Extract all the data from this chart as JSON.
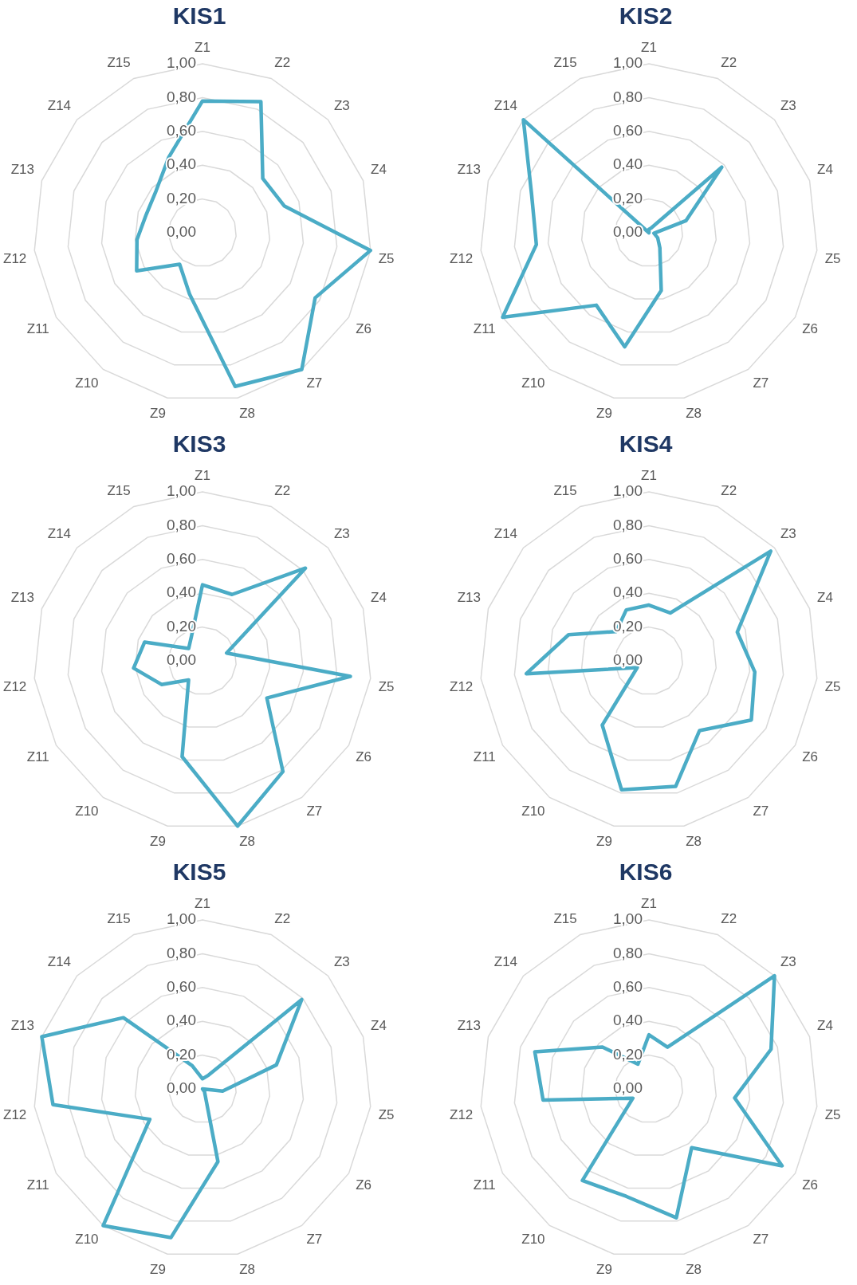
{
  "chart_data": [
    {
      "type": "radar",
      "title": "KIS1",
      "categories": [
        "Z1",
        "Z2",
        "Z3",
        "Z4",
        "Z5",
        "Z6",
        "Z7",
        "Z8",
        "Z9",
        "Z10",
        "Z11",
        "Z12",
        "Z13",
        "Z14",
        "Z15"
      ],
      "series": [
        {
          "color": "#4bacc6",
          "values": [
            0.78,
            0.85,
            0.48,
            0.51,
            1.0,
            0.77,
            1.0,
            0.93,
            0.37,
            0.23,
            0.45,
            0.39,
            0.35,
            0.37,
            0.49
          ]
        }
      ],
      "ylim": [
        0,
        1
      ],
      "yticks": [
        {
          "value": 0,
          "label": "0,00"
        },
        {
          "value": 0.2,
          "label": "0,20"
        },
        {
          "value": 0.4,
          "label": "0,40"
        },
        {
          "value": 0.6,
          "label": "0,60"
        },
        {
          "value": 0.8,
          "label": "0,80"
        },
        {
          "value": 1,
          "label": "1,00"
        }
      ],
      "grid": true
    },
    {
      "type": "radar",
      "title": "KIS2",
      "categories": [
        "Z1",
        "Z2",
        "Z3",
        "Z4",
        "Z5",
        "Z6",
        "Z7",
        "Z8",
        "Z9",
        "Z10",
        "Z11",
        "Z12",
        "Z13",
        "Z14",
        "Z15"
      ],
      "series": [
        {
          "color": "#4bacc6",
          "values": [
            0.02,
            0.03,
            0.58,
            0.23,
            0.03,
            0.06,
            0.11,
            0.35,
            0.69,
            0.53,
            1.0,
            0.67,
            0.73,
            1.0,
            0.0
          ]
        }
      ],
      "ylim": [
        0,
        1
      ],
      "yticks": [
        {
          "value": 0,
          "label": "0,00"
        },
        {
          "value": 0.2,
          "label": "0,20"
        },
        {
          "value": 0.4,
          "label": "0,40"
        },
        {
          "value": 0.6,
          "label": "0,60"
        },
        {
          "value": 0.8,
          "label": "0,80"
        },
        {
          "value": 1,
          "label": "1,00"
        }
      ],
      "grid": true
    },
    {
      "type": "radar",
      "title": "KIS3",
      "categories": [
        "Z1",
        "Z2",
        "Z3",
        "Z4",
        "Z5",
        "Z6",
        "Z7",
        "Z8",
        "Z9",
        "Z10",
        "Z11",
        "Z12",
        "Z13",
        "Z14",
        "Z15"
      ],
      "series": [
        {
          "color": "#4bacc6",
          "values": [
            0.45,
            0.43,
            0.82,
            0.15,
            0.88,
            0.44,
            0.81,
            1.0,
            0.58,
            0.14,
            0.28,
            0.41,
            0.36,
            0.11,
            0.16
          ]
        }
      ],
      "ylim": [
        0,
        1
      ],
      "yticks": [
        {
          "value": 0,
          "label": "0,00"
        },
        {
          "value": 0.2,
          "label": "0,20"
        },
        {
          "value": 0.4,
          "label": "0,40"
        },
        {
          "value": 0.6,
          "label": "0,60"
        },
        {
          "value": 0.8,
          "label": "0,80"
        },
        {
          "value": 1,
          "label": "1,00"
        }
      ],
      "grid": true
    },
    {
      "type": "radar",
      "title": "KIS4",
      "categories": [
        "Z1",
        "Z2",
        "Z3",
        "Z4",
        "Z5",
        "Z6",
        "Z7",
        "Z8",
        "Z9",
        "Z10",
        "Z11",
        "Z12",
        "Z13",
        "Z14",
        "Z15"
      ],
      "series": [
        {
          "color": "#4bacc6",
          "values": [
            0.33,
            0.31,
            0.97,
            0.55,
            0.63,
            0.7,
            0.51,
            0.76,
            0.78,
            0.47,
            0.08,
            0.73,
            0.5,
            0.26,
            0.33
          ]
        }
      ],
      "ylim": [
        0,
        1
      ],
      "yticks": [
        {
          "value": 0,
          "label": "0,00"
        },
        {
          "value": 0.2,
          "label": "0,20"
        },
        {
          "value": 0.4,
          "label": "0,40"
        },
        {
          "value": 0.6,
          "label": "0,60"
        },
        {
          "value": 0.8,
          "label": "0,80"
        },
        {
          "value": 1,
          "label": "1,00"
        }
      ],
      "grid": true
    },
    {
      "type": "radar",
      "title": "KIS5",
      "categories": [
        "Z1",
        "Z2",
        "Z3",
        "Z4",
        "Z5",
        "Z6",
        "Z7",
        "Z8",
        "Z9",
        "Z10",
        "Z11",
        "Z12",
        "Z13",
        "Z14",
        "Z15"
      ],
      "series": [
        {
          "color": "#4bacc6",
          "values": [
            0.06,
            0.09,
            0.79,
            0.46,
            0.12,
            0.0,
            0.02,
            0.44,
            0.9,
            1.0,
            0.36,
            0.89,
            1.0,
            0.63,
            0.15
          ]
        }
      ],
      "ylim": [
        0,
        1
      ],
      "yticks": [
        {
          "value": 0,
          "label": "0,00"
        },
        {
          "value": 0.2,
          "label": "0,20"
        },
        {
          "value": 0.4,
          "label": "0,40"
        },
        {
          "value": 0.6,
          "label": "0,60"
        },
        {
          "value": 0.8,
          "label": "0,80"
        },
        {
          "value": 1,
          "label": "1,00"
        }
      ],
      "grid": true
    },
    {
      "type": "radar",
      "title": "KIS6",
      "categories": [
        "Z1",
        "Z2",
        "Z3",
        "Z4",
        "Z5",
        "Z6",
        "Z7",
        "Z8",
        "Z9",
        "Z10",
        "Z11",
        "Z12",
        "Z13",
        "Z14",
        "Z15"
      ],
      "series": [
        {
          "color": "#4bacc6",
          "values": [
            0.32,
            0.27,
            1.0,
            0.76,
            0.51,
            0.91,
            0.43,
            0.78,
            0.65,
            0.67,
            0.11,
            0.63,
            0.71,
            0.37,
            0.16
          ]
        }
      ],
      "ylim": [
        0,
        1
      ],
      "yticks": [
        {
          "value": 0,
          "label": "0,00"
        },
        {
          "value": 0.2,
          "label": "0,20"
        },
        {
          "value": 0.4,
          "label": "0,40"
        },
        {
          "value": 0.6,
          "label": "0,60"
        },
        {
          "value": 0.8,
          "label": "0,80"
        },
        {
          "value": 1,
          "label": "1,00"
        }
      ],
      "grid": true
    }
  ]
}
